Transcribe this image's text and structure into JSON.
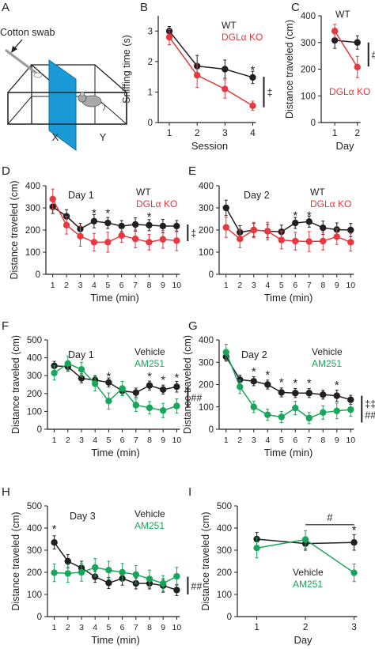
{
  "colors": {
    "black": "#231f20",
    "red": "#e8373f",
    "green": "#17a65a",
    "blue": "#1a9ad6",
    "grey": "#9a9a9a"
  },
  "panel_a": {
    "letter": "A",
    "swab_label": "Cotton swab",
    "left_label": "X",
    "right_label": "Y"
  },
  "chart_data": [
    {
      "panel": "B",
      "type": "line",
      "xlabel": "Session",
      "ylabel": "Sniffing time (s)",
      "x": [
        1,
        2,
        3,
        4
      ],
      "xlim": [
        0.6,
        4.3
      ],
      "ylim": [
        0,
        3.5
      ],
      "yticks": [
        0,
        1,
        2,
        3
      ],
      "series": [
        {
          "name": "WT",
          "color": "#231f20",
          "values": [
            3.0,
            1.85,
            1.75,
            1.48
          ],
          "err": [
            0.15,
            0.35,
            0.3,
            0.2
          ]
        },
        {
          "name": "DGLα KO",
          "color": "#e8373f",
          "values": [
            2.8,
            1.55,
            1.1,
            0.55
          ],
          "err": [
            0.25,
            0.4,
            0.3,
            0.15
          ]
        }
      ],
      "stars": [
        {
          "x": 4,
          "y": 1.75,
          "text": "*"
        }
      ],
      "bracket": {
        "from": 1.5,
        "to": 0.5,
        "text": "‡"
      }
    },
    {
      "panel": "C",
      "type": "line",
      "xlabel": "Day",
      "ylabel": "Distance traveled (cm)",
      "x": [
        1,
        2
      ],
      "xlim": [
        0.4,
        2.5
      ],
      "ylim": [
        0,
        400
      ],
      "yticks": [
        0,
        100,
        200,
        300,
        400
      ],
      "series": [
        {
          "name": "WT",
          "color": "#231f20",
          "values": [
            308,
            300
          ],
          "err": [
            30,
            25
          ]
        },
        {
          "name": "DGLα KO",
          "color": "#e8373f",
          "values": [
            343,
            208
          ],
          "err": [
            25,
            40
          ]
        }
      ],
      "stars": [],
      "bracket": {
        "from": 300,
        "to": 210,
        "text": "#"
      }
    },
    {
      "panel": "D",
      "type": "line",
      "title": "Day 1",
      "xlabel": "Time (min)",
      "ylabel": "Distance traveled (cm)",
      "x": [
        1,
        2,
        3,
        4,
        5,
        6,
        7,
        8,
        9,
        10
      ],
      "xlim": [
        0.5,
        10.5
      ],
      "ylim": [
        0,
        400
      ],
      "yticks": [
        0,
        100,
        200,
        300,
        400
      ],
      "series": [
        {
          "name": "WT",
          "color": "#231f20",
          "values": [
            305,
            262,
            205,
            240,
            232,
            218,
            225,
            222,
            218,
            218
          ],
          "err": [
            30,
            30,
            25,
            30,
            25,
            25,
            30,
            25,
            30,
            25
          ]
        },
        {
          "name": "DGLα KO",
          "color": "#e8373f",
          "values": [
            340,
            222,
            172,
            145,
            145,
            175,
            160,
            145,
            158,
            152
          ],
          "err": [
            45,
            40,
            45,
            40,
            45,
            30,
            40,
            35,
            40,
            45
          ]
        }
      ],
      "stars": [
        {
          "x": 4,
          "y": 280,
          "text": "*"
        },
        {
          "x": 5,
          "y": 280,
          "text": "*"
        },
        {
          "x": 8,
          "y": 265,
          "text": "*"
        }
      ],
      "bracket": {
        "from": 225,
        "to": 150,
        "text": "‡"
      }
    },
    {
      "panel": "E",
      "type": "line",
      "title": "Day 2",
      "xlabel": "Time (min)",
      "ylabel": "",
      "x": [
        1,
        2,
        3,
        4,
        5,
        6,
        7,
        8,
        9,
        10
      ],
      "xlim": [
        0.5,
        10.5
      ],
      "ylim": [
        0,
        400
      ],
      "yticks": [
        0,
        100,
        200,
        300,
        400
      ],
      "series": [
        {
          "name": "WT",
          "color": "#231f20",
          "values": [
            300,
            190,
            200,
            195,
            192,
            232,
            238,
            210,
            202,
            200
          ],
          "err": [
            35,
            30,
            30,
            30,
            30,
            25,
            25,
            30,
            30,
            30
          ]
        },
        {
          "name": "DGLα KO",
          "color": "#e8373f",
          "values": [
            212,
            160,
            200,
            195,
            155,
            150,
            148,
            150,
            170,
            145
          ],
          "err": [
            45,
            40,
            35,
            40,
            40,
            40,
            45,
            40,
            35,
            40
          ]
        }
      ],
      "stars": [
        {
          "x": 6,
          "y": 270,
          "text": "*"
        },
        {
          "x": 7,
          "y": 270,
          "text": "*"
        }
      ],
      "bracket": null
    },
    {
      "panel": "F",
      "type": "line",
      "title": "Day 1",
      "xlabel": "Time (min)",
      "ylabel": "Distance traveled (cm)",
      "x": [
        1,
        2,
        3,
        4,
        5,
        6,
        7,
        8,
        9,
        10
      ],
      "xlim": [
        0.5,
        10.5
      ],
      "ylim": [
        0,
        500
      ],
      "yticks": [
        0,
        100,
        200,
        300,
        400,
        500
      ],
      "series": [
        {
          "name": "Vehicle",
          "color": "#231f20",
          "values": [
            355,
            350,
            285,
            275,
            262,
            215,
            205,
            245,
            222,
            238
          ],
          "err": [
            25,
            25,
            25,
            25,
            25,
            25,
            25,
            25,
            25,
            30
          ]
        },
        {
          "name": "AM251",
          "color": "#17a65a",
          "values": [
            315,
            368,
            335,
            255,
            158,
            228,
            135,
            120,
            105,
            130
          ],
          "err": [
            40,
            40,
            40,
            40,
            45,
            40,
            35,
            35,
            40,
            40
          ]
        }
      ],
      "stars": [
        {
          "x": 5,
          "y": 300,
          "text": "*"
        },
        {
          "x": 8,
          "y": 300,
          "text": "*"
        },
        {
          "x": 9,
          "y": 280,
          "text": "*"
        },
        {
          "x": 10,
          "y": 295,
          "text": "*"
        }
      ],
      "bracket": {
        "from": 240,
        "to": 120,
        "text": "##"
      }
    },
    {
      "panel": "G",
      "type": "line",
      "title": "Day 2",
      "xlabel": "Time (min)",
      "ylabel": "Distance traveled (cm)",
      "x": [
        1,
        2,
        3,
        4,
        5,
        6,
        7,
        8,
        9,
        10
      ],
      "xlim": [
        0.5,
        10.5
      ],
      "ylim": [
        0,
        400
      ],
      "yticks": [
        0,
        100,
        200,
        300,
        400
      ],
      "series": [
        {
          "name": "Vehicle",
          "color": "#231f20",
          "values": [
            325,
            222,
            215,
            200,
            165,
            162,
            162,
            155,
            150,
            132
          ],
          "err": [
            20,
            20,
            20,
            20,
            20,
            20,
            20,
            20,
            25,
            20
          ]
        },
        {
          "name": "AM251",
          "color": "#17a65a",
          "values": [
            345,
            190,
            100,
            65,
            55,
            95,
            50,
            75,
            82,
            88
          ],
          "err": [
            35,
            30,
            25,
            25,
            25,
            30,
            25,
            30,
            35,
            30
          ]
        }
      ],
      "stars": [
        {
          "x": 3,
          "y": 262,
          "text": "*"
        },
        {
          "x": 4,
          "y": 248,
          "text": "*"
        },
        {
          "x": 5,
          "y": 215,
          "text": "*"
        },
        {
          "x": 6,
          "y": 210,
          "text": "*"
        },
        {
          "x": 7,
          "y": 210,
          "text": "*"
        },
        {
          "x": 9,
          "y": 202,
          "text": "*"
        }
      ],
      "bracket": {
        "from": 150,
        "to": 30,
        "text": "‡‡ ##"
      }
    },
    {
      "panel": "H",
      "type": "line",
      "title": "Day 3",
      "xlabel": "Time (min)",
      "ylabel": "Distance traveled (cm)",
      "x": [
        1,
        2,
        3,
        4,
        5,
        6,
        7,
        8,
        9,
        10
      ],
      "xlim": [
        0.5,
        10.5
      ],
      "ylim": [
        0,
        500
      ],
      "yticks": [
        0,
        100,
        200,
        300,
        400,
        500
      ],
      "series": [
        {
          "name": "Vehicle",
          "color": "#231f20",
          "values": [
            335,
            250,
            220,
            180,
            152,
            172,
            150,
            150,
            140,
            120
          ],
          "err": [
            30,
            30,
            30,
            25,
            25,
            30,
            25,
            25,
            30,
            25
          ]
        },
        {
          "name": "AM251",
          "color": "#17a65a",
          "values": [
            198,
            195,
            200,
            222,
            210,
            200,
            190,
            170,
            150,
            182
          ],
          "err": [
            40,
            40,
            40,
            40,
            40,
            40,
            40,
            40,
            35,
            40
          ]
        }
      ],
      "stars": [
        {
          "x": 1,
          "y": 400,
          "text": "*"
        }
      ],
      "bracket": {
        "from": 180,
        "to": 100,
        "text": "##"
      }
    },
    {
      "panel": "I",
      "type": "line",
      "xlabel": "Day",
      "ylabel": "Distance traveled (cm)",
      "x": [
        1,
        2,
        3
      ],
      "xlim": [
        0.6,
        3.3
      ],
      "ylim": [
        0,
        500
      ],
      "yticks": [
        0,
        100,
        200,
        300,
        400,
        500
      ],
      "series": [
        {
          "name": "Vehicle",
          "color": "#231f20",
          "values": [
            350,
            330,
            335
          ],
          "err": [
            30,
            30,
            35
          ]
        },
        {
          "name": "AM251",
          "color": "#17a65a",
          "values": [
            310,
            348,
            198
          ],
          "err": [
            45,
            40,
            40
          ]
        }
      ],
      "stars": [
        {
          "x": 3,
          "y": 395,
          "text": "*"
        }
      ],
      "hbar": {
        "x1": 2,
        "x2": 3,
        "y": 415,
        "text": "#"
      },
      "bracket": null
    }
  ]
}
